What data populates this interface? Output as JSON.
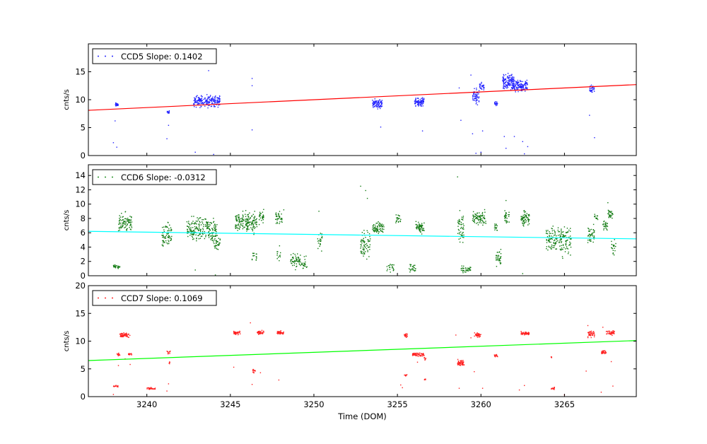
{
  "chart_data": [
    {
      "type": "scatter",
      "ylabel": "cnts/s",
      "ylim": [
        0,
        20
      ],
      "yticks": [
        0,
        5,
        10,
        15
      ],
      "xlim": [
        3236.5,
        3269.3
      ],
      "legend": {
        "label": "CCD5 Slope: 0.1402",
        "placement": "top-left",
        "marker_color": "#0000ff"
      },
      "point_color": "#2222ff",
      "fit_color": "#ff0000",
      "fit_line": {
        "x": [
          3236.5,
          3269.3
        ],
        "y": [
          8.1,
          12.7
        ]
      },
      "clusters": [
        {
          "x": [
            3238.1,
            3238.3
          ],
          "y": [
            8.6,
            9.6
          ],
          "n": 25
        },
        {
          "x": [
            3241.2,
            3241.4
          ],
          "y": [
            7.4,
            8.1
          ],
          "n": 12
        },
        {
          "x": [
            3242.8,
            3244.4
          ],
          "y": [
            8.3,
            11.2
          ],
          "n": 200
        },
        {
          "x": [
            3253.5,
            3254.1
          ],
          "y": [
            8.2,
            10.4
          ],
          "n": 90
        },
        {
          "x": [
            3256.0,
            3256.6
          ],
          "y": [
            8.6,
            10.6
          ],
          "n": 90
        },
        {
          "x": [
            3259.5,
            3259.9
          ],
          "y": [
            8.5,
            12.5
          ],
          "n": 55
        },
        {
          "x": [
            3259.9,
            3260.2
          ],
          "y": [
            11.5,
            13.4
          ],
          "n": 30
        },
        {
          "x": [
            3260.8,
            3261.0
          ],
          "y": [
            8.8,
            9.8
          ],
          "n": 20
        },
        {
          "x": [
            3261.3,
            3262.0
          ],
          "y": [
            11.0,
            15.0
          ],
          "n": 140
        },
        {
          "x": [
            3262.0,
            3262.8
          ],
          "y": [
            10.8,
            14.0
          ],
          "n": 120
        },
        {
          "x": [
            3266.5,
            3266.8
          ],
          "y": [
            10.8,
            13.0
          ],
          "n": 30
        }
      ],
      "outliers": [
        [
          3238.0,
          2.3
        ],
        [
          3238.2,
          1.5
        ],
        [
          3238.1,
          6.2
        ],
        [
          3241.3,
          5.4
        ],
        [
          3241.2,
          3.0
        ],
        [
          3242.9,
          0.6
        ],
        [
          3243.7,
          15.2
        ],
        [
          3244.0,
          0.2
        ],
        [
          3246.3,
          13.8
        ],
        [
          3246.3,
          12.5
        ],
        [
          3246.3,
          4.6
        ],
        [
          3254.0,
          5.1
        ],
        [
          3256.5,
          4.4
        ],
        [
          3258.8,
          6.3
        ],
        [
          3258.7,
          12.1
        ],
        [
          3259.4,
          14.4
        ],
        [
          3259.5,
          3.9
        ],
        [
          3259.7,
          0.4
        ],
        [
          3260.0,
          0.6
        ],
        [
          3260.1,
          4.4
        ],
        [
          3261.5,
          1.3
        ],
        [
          3261.4,
          3.4
        ],
        [
          3262.0,
          3.4
        ],
        [
          3262.5,
          2.5
        ],
        [
          3262.8,
          1.6
        ],
        [
          3262.6,
          0.3
        ],
        [
          3266.5,
          7.2
        ],
        [
          3266.8,
          3.2
        ]
      ]
    },
    {
      "type": "scatter",
      "ylabel": "cnts/s",
      "ylim": [
        0,
        15.5
      ],
      "yticks": [
        0,
        2,
        4,
        6,
        8,
        10,
        12,
        14
      ],
      "xlim": [
        3236.5,
        3269.3
      ],
      "legend": {
        "label": "CCD6 Slope: -0.0312",
        "placement": "top-left",
        "marker_color": "#008000"
      },
      "point_color": "#117a11",
      "fit_color": "#00ffff",
      "fit_line": {
        "x": [
          3236.5,
          3269.3
        ],
        "y": [
          6.2,
          5.15
        ]
      },
      "clusters": [
        {
          "x": [
            3238.0,
            3238.4
          ],
          "y": [
            0.9,
            1.6
          ],
          "n": 25
        },
        {
          "x": [
            3238.3,
            3239.1
          ],
          "y": [
            5.5,
            9.2
          ],
          "n": 90
        },
        {
          "x": [
            3240.9,
            3241.5
          ],
          "y": [
            3.5,
            8.0
          ],
          "n": 70
        },
        {
          "x": [
            3242.4,
            3244.2
          ],
          "y": [
            4.0,
            9.0
          ],
          "n": 220
        },
        {
          "x": [
            3244.0,
            3244.4
          ],
          "y": [
            3.0,
            6.0
          ],
          "n": 30
        },
        {
          "x": [
            3245.3,
            3246.6
          ],
          "y": [
            5.5,
            9.5
          ],
          "n": 170
        },
        {
          "x": [
            3246.3,
            3246.6
          ],
          "y": [
            1.5,
            4.0
          ],
          "n": 15
        },
        {
          "x": [
            3246.7,
            3247.0
          ],
          "y": [
            6.8,
            9.5
          ],
          "n": 30
        },
        {
          "x": [
            3247.7,
            3248.1
          ],
          "y": [
            7.0,
            9.2
          ],
          "n": 35
        },
        {
          "x": [
            3247.8,
            3248.0
          ],
          "y": [
            1.5,
            4.5
          ],
          "n": 12
        },
        {
          "x": [
            3248.6,
            3249.6
          ],
          "y": [
            0.4,
            3.5
          ],
          "n": 80
        },
        {
          "x": [
            3250.2,
            3250.5
          ],
          "y": [
            2.5,
            7.0
          ],
          "n": 25
        },
        {
          "x": [
            3252.8,
            3253.4
          ],
          "y": [
            2.0,
            7.0
          ],
          "n": 70
        },
        {
          "x": [
            3253.5,
            3254.2
          ],
          "y": [
            5.5,
            8.0
          ],
          "n": 70
        },
        {
          "x": [
            3254.3,
            3254.8
          ],
          "y": [
            0.3,
            2.0
          ],
          "n": 20
        },
        {
          "x": [
            3254.9,
            3255.2
          ],
          "y": [
            7.0,
            9.0
          ],
          "n": 20
        },
        {
          "x": [
            3255.7,
            3256.1
          ],
          "y": [
            0.3,
            1.8
          ],
          "n": 25
        },
        {
          "x": [
            3256.1,
            3256.6
          ],
          "y": [
            5.5,
            7.8
          ],
          "n": 60
        },
        {
          "x": [
            3258.6,
            3259.0
          ],
          "y": [
            3.5,
            9.5
          ],
          "n": 50
        },
        {
          "x": [
            3258.8,
            3259.4
          ],
          "y": [
            0.3,
            1.5
          ],
          "n": 35
        },
        {
          "x": [
            3259.5,
            3260.3
          ],
          "y": [
            6.5,
            9.5
          ],
          "n": 80
        },
        {
          "x": [
            3260.9,
            3261.2
          ],
          "y": [
            1.0,
            4.0
          ],
          "n": 35
        },
        {
          "x": [
            3260.8,
            3261.0
          ],
          "y": [
            6.0,
            7.5
          ],
          "n": 15
        },
        {
          "x": [
            3261.4,
            3261.7
          ],
          "y": [
            7.0,
            9.5
          ],
          "n": 30
        },
        {
          "x": [
            3262.4,
            3262.9
          ],
          "y": [
            6.5,
            9.5
          ],
          "n": 60
        },
        {
          "x": [
            3263.9,
            3265.4
          ],
          "y": [
            2.0,
            8.0
          ],
          "n": 170
        },
        {
          "x": [
            3266.4,
            3266.8
          ],
          "y": [
            4.0,
            7.5
          ],
          "n": 40
        },
        {
          "x": [
            3266.8,
            3267.0
          ],
          "y": [
            7.5,
            9.0
          ],
          "n": 15
        },
        {
          "x": [
            3267.3,
            3267.6
          ],
          "y": [
            6.0,
            8.0
          ],
          "n": 25
        },
        {
          "x": [
            3267.6,
            3267.9
          ],
          "y": [
            7.5,
            9.5
          ],
          "n": 30
        },
        {
          "x": [
            3267.8,
            3268.1
          ],
          "y": [
            2.0,
            6.0
          ],
          "n": 20
        }
      ],
      "outliers": [
        [
          3252.8,
          12.5
        ],
        [
          3253.1,
          11.9
        ],
        [
          3253.2,
          10.8
        ],
        [
          3258.6,
          13.8
        ],
        [
          3242.9,
          0.8
        ],
        [
          3244.1,
          0.1
        ],
        [
          3248.2,
          9.2
        ],
        [
          3250.3,
          9.0
        ],
        [
          3261.5,
          10.5
        ],
        [
          3262.5,
          0.3
        ],
        [
          3267.6,
          10.2
        ]
      ]
    },
    {
      "type": "scatter",
      "xlabel": "Time (DOM)",
      "ylabel": "cnts/s",
      "ylim": [
        0,
        20
      ],
      "yticks": [
        0,
        5,
        10,
        15,
        20
      ],
      "xlim": [
        3236.5,
        3269.3
      ],
      "xticks": [
        3240,
        3245,
        3250,
        3255,
        3260,
        3265
      ],
      "legend": {
        "label": "CCD7 Slope: 0.1069",
        "placement": "top-left",
        "marker_color": "#ff0000"
      },
      "point_color": "#ff2020",
      "fit_color": "#00ff00",
      "fit_line": {
        "x": [
          3236.5,
          3269.3
        ],
        "y": [
          6.5,
          10.1
        ]
      },
      "clusters": [
        {
          "x": [
            3238.0,
            3238.3
          ],
          "y": [
            1.7,
            2.1
          ],
          "n": 15
        },
        {
          "x": [
            3238.2,
            3238.4
          ],
          "y": [
            7.3,
            8.0
          ],
          "n": 15
        },
        {
          "x": [
            3238.4,
            3239.0
          ],
          "y": [
            10.5,
            11.6
          ],
          "n": 60
        },
        {
          "x": [
            3238.9,
            3239.1
          ],
          "y": [
            7.2,
            8.0
          ],
          "n": 12
        },
        {
          "x": [
            3240.0,
            3240.5
          ],
          "y": [
            1.2,
            1.7
          ],
          "n": 30
        },
        {
          "x": [
            3241.2,
            3241.4
          ],
          "y": [
            7.4,
            8.5
          ],
          "n": 12
        },
        {
          "x": [
            3241.3,
            3241.4
          ],
          "y": [
            5.8,
            6.4
          ],
          "n": 5
        },
        {
          "x": [
            3245.2,
            3245.6
          ],
          "y": [
            11.0,
            12.0
          ],
          "n": 40
        },
        {
          "x": [
            3246.3,
            3246.5
          ],
          "y": [
            4.0,
            5.2
          ],
          "n": 12
        },
        {
          "x": [
            3246.6,
            3247.0
          ],
          "y": [
            11.0,
            12.0
          ],
          "n": 40
        },
        {
          "x": [
            3247.8,
            3248.2
          ],
          "y": [
            11.0,
            12.0
          ],
          "n": 40
        },
        {
          "x": [
            3255.4,
            3255.6
          ],
          "y": [
            10.5,
            11.6
          ],
          "n": 20
        },
        {
          "x": [
            3255.4,
            3255.6
          ],
          "y": [
            3.5,
            4.2
          ],
          "n": 8
        },
        {
          "x": [
            3255.9,
            3256.6
          ],
          "y": [
            7.2,
            8.0
          ],
          "n": 60
        },
        {
          "x": [
            3256.6,
            3256.7
          ],
          "y": [
            2.8,
            3.4
          ],
          "n": 10
        },
        {
          "x": [
            3256.6,
            3256.7
          ],
          "y": [
            6.5,
            7.2
          ],
          "n": 6
        },
        {
          "x": [
            3258.6,
            3259.0
          ],
          "y": [
            5.3,
            6.8
          ],
          "n": 60
        },
        {
          "x": [
            3259.6,
            3260.0
          ],
          "y": [
            10.6,
            11.6
          ],
          "n": 40
        },
        {
          "x": [
            3260.8,
            3261.0
          ],
          "y": [
            7.0,
            7.8
          ],
          "n": 15
        },
        {
          "x": [
            3262.4,
            3262.9
          ],
          "y": [
            11.0,
            11.8
          ],
          "n": 50
        },
        {
          "x": [
            3264.2,
            3264.4
          ],
          "y": [
            1.2,
            1.8
          ],
          "n": 12
        },
        {
          "x": [
            3264.2,
            3264.3
          ],
          "y": [
            6.8,
            7.4
          ],
          "n": 5
        },
        {
          "x": [
            3266.4,
            3266.8
          ],
          "y": [
            10.5,
            12.0
          ],
          "n": 40
        },
        {
          "x": [
            3267.2,
            3267.5
          ],
          "y": [
            7.5,
            8.5
          ],
          "n": 30
        },
        {
          "x": [
            3267.5,
            3268.0
          ],
          "y": [
            11.0,
            12.0
          ],
          "n": 40
        }
      ],
      "outliers": [
        [
          3238.0,
          0.4
        ],
        [
          3238.3,
          5.6
        ],
        [
          3238.7,
          6.8
        ],
        [
          3239.0,
          5.8
        ],
        [
          3241.2,
          1.0
        ],
        [
          3241.3,
          2.3
        ],
        [
          3245.2,
          5.3
        ],
        [
          3246.2,
          13.3
        ],
        [
          3246.3,
          2.2
        ],
        [
          3246.8,
          4.3
        ],
        [
          3247.9,
          3.0
        ],
        [
          3255.2,
          2.1
        ],
        [
          3255.3,
          1.6
        ],
        [
          3256.2,
          6.2
        ],
        [
          3258.5,
          11.1
        ],
        [
          3258.7,
          1.5
        ],
        [
          3259.4,
          10.6
        ],
        [
          3259.6,
          4.5
        ],
        [
          3260.1,
          1.5
        ],
        [
          3262.3,
          1.2
        ],
        [
          3262.6,
          2.0
        ],
        [
          3266.3,
          4.6
        ],
        [
          3266.4,
          12.8
        ],
        [
          3267.3,
          12.5
        ],
        [
          3267.8,
          6.3
        ],
        [
          3267.9,
          1.9
        ],
        [
          3267.2,
          0.8
        ],
        [
          3265.0,
          0.3
        ]
      ]
    }
  ]
}
